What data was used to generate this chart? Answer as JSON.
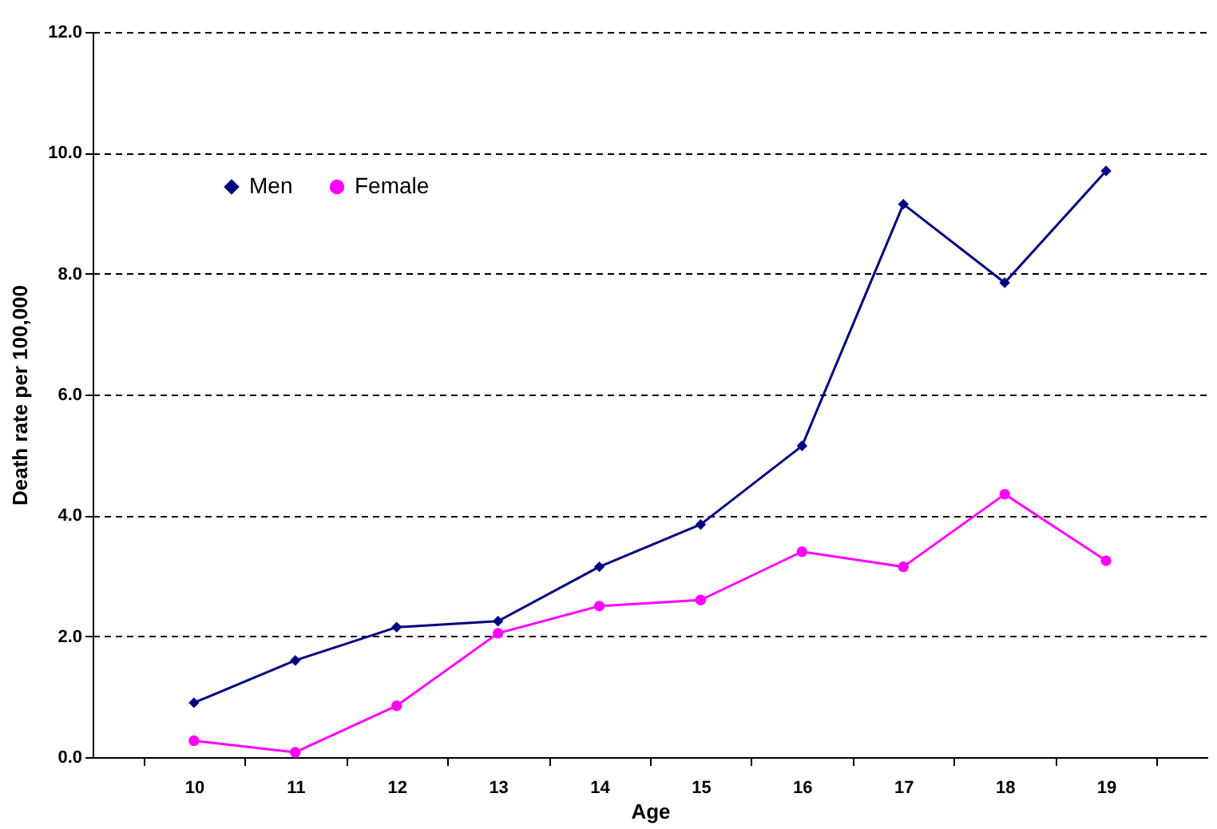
{
  "chart_data": {
    "type": "line",
    "xlabel": "Age",
    "ylabel": "Death rate per 100,000",
    "categories": [
      "10",
      "11",
      "12",
      "13",
      "14",
      "15",
      "16",
      "17",
      "18",
      "19"
    ],
    "series": [
      {
        "name": "Men",
        "color": "#000080",
        "marker": "diamond",
        "values": [
          0.9,
          1.6,
          2.15,
          2.25,
          3.15,
          3.85,
          5.15,
          9.15,
          7.85,
          9.7
        ]
      },
      {
        "name": "Female",
        "color": "#ff00ff",
        "marker": "circle",
        "values": [
          0.27,
          0.08,
          0.85,
          2.05,
          2.5,
          2.6,
          3.4,
          3.15,
          4.35,
          3.25
        ]
      }
    ],
    "ylim": [
      0,
      12
    ],
    "yticks": [
      {
        "value": 0,
        "label": "0.0"
      },
      {
        "value": 2,
        "label": "2.0"
      },
      {
        "value": 4,
        "label": "4.0"
      },
      {
        "value": 6,
        "label": "6.0"
      },
      {
        "value": 8,
        "label": "8.0"
      },
      {
        "value": 10,
        "label": "10.0"
      },
      {
        "value": 12,
        "label": "12.0"
      }
    ],
    "grid": "y",
    "line_style": "solid",
    "legend": "top left"
  }
}
